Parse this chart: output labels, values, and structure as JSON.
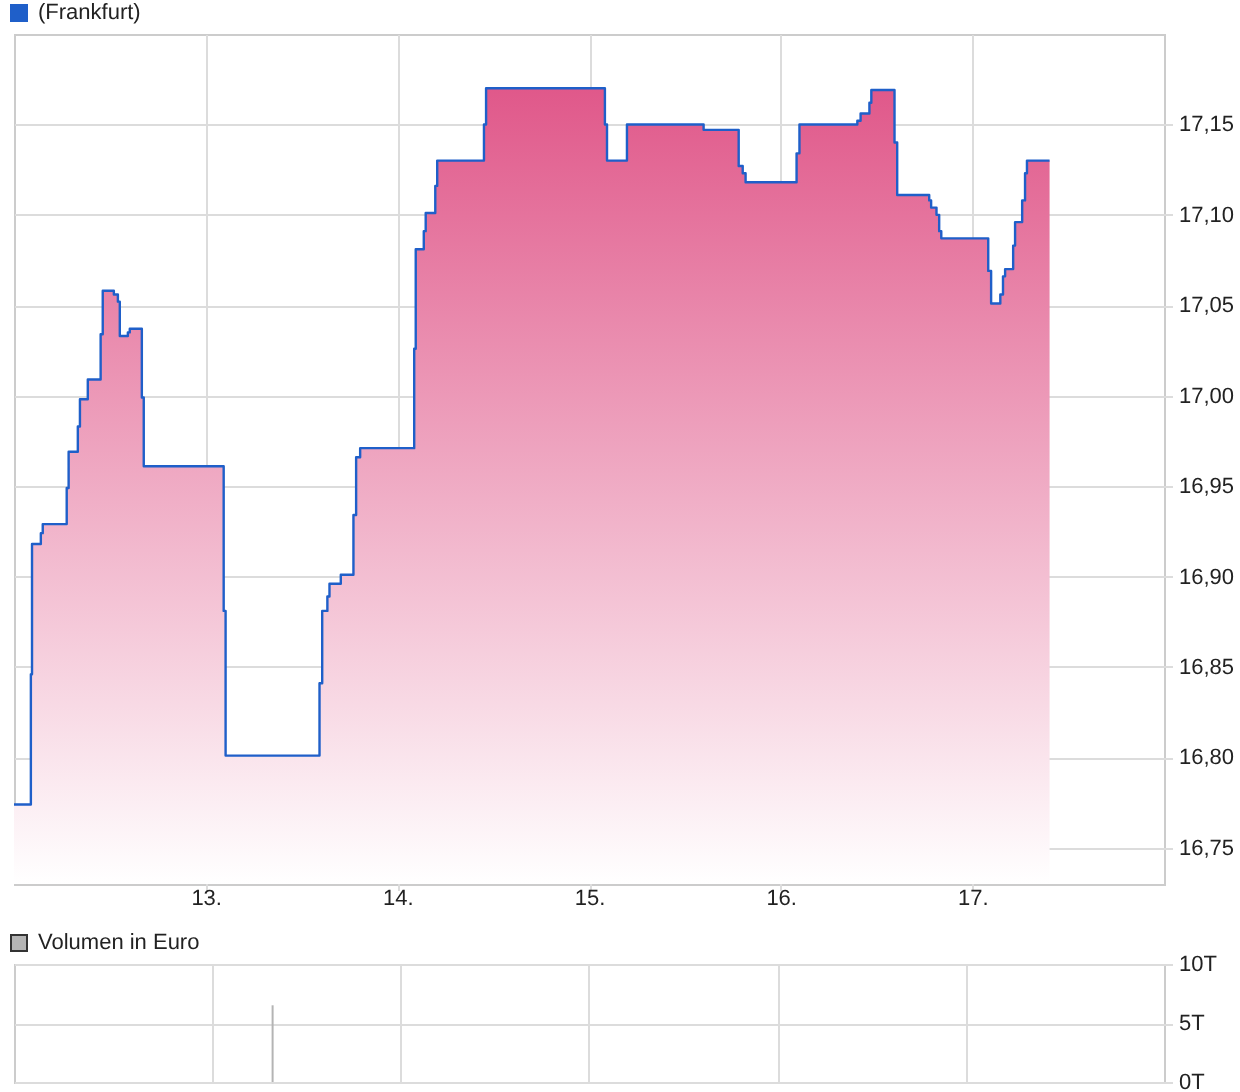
{
  "chart_data": [
    {
      "type": "area",
      "legend": "top left",
      "grid": true,
      "xlim": [
        12,
        18
      ],
      "ylim": [
        16.73,
        17.2
      ],
      "xticks": [
        {
          "value": 13,
          "label": "13."
        },
        {
          "value": 14,
          "label": "14."
        },
        {
          "value": 15,
          "label": "15."
        },
        {
          "value": 16,
          "label": "16."
        },
        {
          "value": 17,
          "label": "17."
        }
      ],
      "yticks": [
        {
          "value": 16.75,
          "label": "16,75"
        },
        {
          "value": 16.8,
          "label": "16,80"
        },
        {
          "value": 16.85,
          "label": "16,85"
        },
        {
          "value": 16.9,
          "label": "16,90"
        },
        {
          "value": 16.95,
          "label": "16,95"
        },
        {
          "value": 17,
          "label": "17,00"
        },
        {
          "value": 17.05,
          "label": "17,05"
        },
        {
          "value": 17.1,
          "label": "17,10"
        },
        {
          "value": 17.15,
          "label": "17,15"
        }
      ],
      "x": [
        12.0,
        12.088,
        12.088,
        12.094,
        12.094,
        12.14,
        12.14,
        12.15,
        12.15,
        12.275,
        12.275,
        12.285,
        12.285,
        12.333,
        12.333,
        12.344,
        12.344,
        12.385,
        12.385,
        12.452,
        12.452,
        12.463,
        12.463,
        12.521,
        12.521,
        12.542,
        12.542,
        12.552,
        12.552,
        12.594,
        12.594,
        12.604,
        12.604,
        12.667,
        12.667,
        12.677,
        12.677,
        13.094,
        13.094,
        13.104,
        13.104,
        13.594,
        13.594,
        13.608,
        13.608,
        13.635,
        13.635,
        13.646,
        13.646,
        13.705,
        13.705,
        13.771,
        13.771,
        13.785,
        13.785,
        13.806,
        13.806,
        14.088,
        14.088,
        14.096,
        14.096,
        14.138,
        14.138,
        14.148,
        14.148,
        14.198,
        14.198,
        14.208,
        14.208,
        14.452,
        14.452,
        14.463,
        14.463,
        15.083,
        15.083,
        15.094,
        15.094,
        15.198,
        15.198,
        15.598,
        15.598,
        15.781,
        15.781,
        15.802,
        15.802,
        15.817,
        15.817,
        16.083,
        16.083,
        16.098,
        16.098,
        16.4,
        16.4,
        16.417,
        16.417,
        16.463,
        16.463,
        16.473,
        16.473,
        16.594,
        16.594,
        16.608,
        16.608,
        16.775,
        16.775,
        16.785,
        16.785,
        16.813,
        16.813,
        16.827,
        16.827,
        16.838,
        16.838,
        17.083,
        17.083,
        17.098,
        17.098,
        17.146,
        17.146,
        17.16,
        17.16,
        17.171,
        17.171,
        17.213,
        17.213,
        17.223,
        17.223,
        17.26,
        17.26,
        17.275,
        17.275,
        17.285,
        17.285,
        17.403
      ],
      "series": [
        {
          "name": "(Frankfurt)",
          "color": "#1f5fc9",
          "values": [
            16.774,
            16.774,
            16.846,
            16.846,
            16.918,
            16.918,
            16.924,
            16.924,
            16.929,
            16.929,
            16.949,
            16.949,
            16.969,
            16.969,
            16.983,
            16.983,
            16.998,
            16.998,
            17.009,
            17.009,
            17.034,
            17.034,
            17.058,
            17.058,
            17.056,
            17.056,
            17.052,
            17.052,
            17.033,
            17.033,
            17.035,
            17.035,
            17.037,
            17.037,
            16.999,
            16.999,
            16.961,
            16.961,
            16.881,
            16.881,
            16.801,
            16.801,
            16.841,
            16.841,
            16.881,
            16.881,
            16.889,
            16.889,
            16.896,
            16.896,
            16.901,
            16.901,
            16.934,
            16.934,
            16.966,
            16.966,
            16.971,
            16.971,
            17.026,
            17.026,
            17.081,
            17.081,
            17.091,
            17.091,
            17.101,
            17.101,
            17.116,
            17.116,
            17.13,
            17.13,
            17.15,
            17.15,
            17.17,
            17.17,
            17.15,
            17.15,
            17.13,
            17.13,
            17.15,
            17.15,
            17.147,
            17.147,
            17.127,
            17.127,
            17.123,
            17.123,
            17.118,
            17.118,
            17.134,
            17.134,
            17.15,
            17.15,
            17.152,
            17.152,
            17.156,
            17.156,
            17.162,
            17.162,
            17.169,
            17.169,
            17.14,
            17.14,
            17.111,
            17.111,
            17.108,
            17.108,
            17.104,
            17.104,
            17.1,
            17.1,
            17.091,
            17.091,
            17.087,
            17.087,
            17.069,
            17.069,
            17.051,
            17.051,
            17.056,
            17.056,
            17.066,
            17.066,
            17.07,
            17.07,
            17.083,
            17.083,
            17.096,
            17.096,
            17.108,
            17.108,
            17.123,
            17.123,
            17.13,
            17.13
          ]
        }
      ]
    },
    {
      "type": "bar",
      "legend": "top left",
      "grid": true,
      "tick_labels": "y",
      "xlim": [
        12,
        18
      ],
      "ylim": [
        0,
        10
      ],
      "xticks": [
        {
          "value": 13,
          "label": null
        },
        {
          "value": 14,
          "label": null
        },
        {
          "value": 15,
          "label": null
        },
        {
          "value": 16,
          "label": null
        },
        {
          "value": 17,
          "label": null
        }
      ],
      "yticks": [
        {
          "value": 0,
          "label": "0T"
        },
        {
          "value": 5,
          "label": "5T"
        },
        {
          "value": 10,
          "label": "10T"
        }
      ],
      "x": [
        13.32
      ],
      "series": [
        {
          "name": "Volumen in Euro",
          "color": "#b4b4b4",
          "values": [
            6.5
          ]
        }
      ]
    }
  ]
}
